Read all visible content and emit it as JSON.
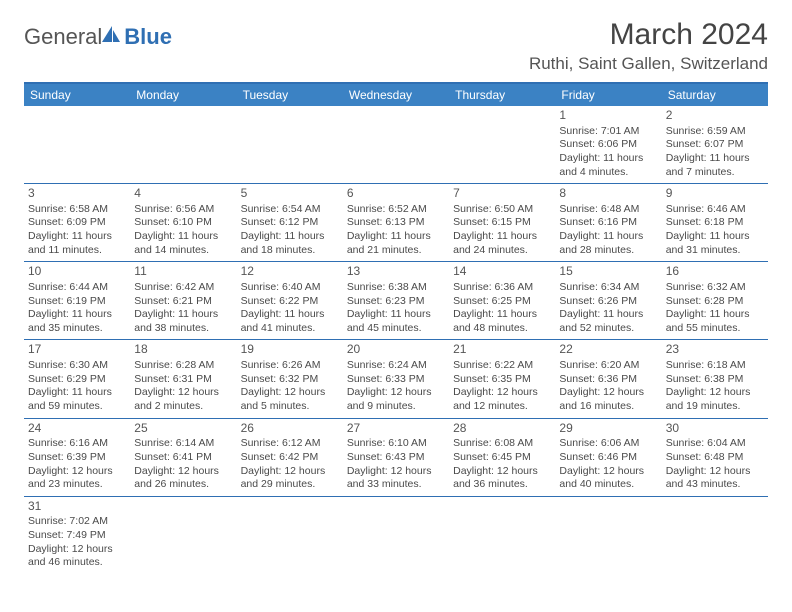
{
  "logo": {
    "part1": "General",
    "part2": "Blue"
  },
  "title": "March 2024",
  "location": "Ruthi, Saint Gallen, Switzerland",
  "colors": {
    "header_bg": "#3b82c4",
    "header_border": "#2f6fb3",
    "row_divider": "#2f6fb3",
    "text": "#4a4a4a",
    "title_text": "#444444",
    "logo_gray": "#555555",
    "logo_blue": "#2f6fb3",
    "background": "#ffffff"
  },
  "typography": {
    "title_fontsize": 30,
    "location_fontsize": 17,
    "dow_fontsize": 12,
    "daynum_fontsize": 12,
    "cell_fontsize": 10.5
  },
  "dow": [
    "Sunday",
    "Monday",
    "Tuesday",
    "Wednesday",
    "Thursday",
    "Friday",
    "Saturday"
  ],
  "weeks": [
    [
      null,
      null,
      null,
      null,
      null,
      {
        "day": "1",
        "sunrise": "Sunrise: 7:01 AM",
        "sunset": "Sunset: 6:06 PM",
        "daylight": "Daylight: 11 hours and 4 minutes."
      },
      {
        "day": "2",
        "sunrise": "Sunrise: 6:59 AM",
        "sunset": "Sunset: 6:07 PM",
        "daylight": "Daylight: 11 hours and 7 minutes."
      }
    ],
    [
      {
        "day": "3",
        "sunrise": "Sunrise: 6:58 AM",
        "sunset": "Sunset: 6:09 PM",
        "daylight": "Daylight: 11 hours and 11 minutes."
      },
      {
        "day": "4",
        "sunrise": "Sunrise: 6:56 AM",
        "sunset": "Sunset: 6:10 PM",
        "daylight": "Daylight: 11 hours and 14 minutes."
      },
      {
        "day": "5",
        "sunrise": "Sunrise: 6:54 AM",
        "sunset": "Sunset: 6:12 PM",
        "daylight": "Daylight: 11 hours and 18 minutes."
      },
      {
        "day": "6",
        "sunrise": "Sunrise: 6:52 AM",
        "sunset": "Sunset: 6:13 PM",
        "daylight": "Daylight: 11 hours and 21 minutes."
      },
      {
        "day": "7",
        "sunrise": "Sunrise: 6:50 AM",
        "sunset": "Sunset: 6:15 PM",
        "daylight": "Daylight: 11 hours and 24 minutes."
      },
      {
        "day": "8",
        "sunrise": "Sunrise: 6:48 AM",
        "sunset": "Sunset: 6:16 PM",
        "daylight": "Daylight: 11 hours and 28 minutes."
      },
      {
        "day": "9",
        "sunrise": "Sunrise: 6:46 AM",
        "sunset": "Sunset: 6:18 PM",
        "daylight": "Daylight: 11 hours and 31 minutes."
      }
    ],
    [
      {
        "day": "10",
        "sunrise": "Sunrise: 6:44 AM",
        "sunset": "Sunset: 6:19 PM",
        "daylight": "Daylight: 11 hours and 35 minutes."
      },
      {
        "day": "11",
        "sunrise": "Sunrise: 6:42 AM",
        "sunset": "Sunset: 6:21 PM",
        "daylight": "Daylight: 11 hours and 38 minutes."
      },
      {
        "day": "12",
        "sunrise": "Sunrise: 6:40 AM",
        "sunset": "Sunset: 6:22 PM",
        "daylight": "Daylight: 11 hours and 41 minutes."
      },
      {
        "day": "13",
        "sunrise": "Sunrise: 6:38 AM",
        "sunset": "Sunset: 6:23 PM",
        "daylight": "Daylight: 11 hours and 45 minutes."
      },
      {
        "day": "14",
        "sunrise": "Sunrise: 6:36 AM",
        "sunset": "Sunset: 6:25 PM",
        "daylight": "Daylight: 11 hours and 48 minutes."
      },
      {
        "day": "15",
        "sunrise": "Sunrise: 6:34 AM",
        "sunset": "Sunset: 6:26 PM",
        "daylight": "Daylight: 11 hours and 52 minutes."
      },
      {
        "day": "16",
        "sunrise": "Sunrise: 6:32 AM",
        "sunset": "Sunset: 6:28 PM",
        "daylight": "Daylight: 11 hours and 55 minutes."
      }
    ],
    [
      {
        "day": "17",
        "sunrise": "Sunrise: 6:30 AM",
        "sunset": "Sunset: 6:29 PM",
        "daylight": "Daylight: 11 hours and 59 minutes."
      },
      {
        "day": "18",
        "sunrise": "Sunrise: 6:28 AM",
        "sunset": "Sunset: 6:31 PM",
        "daylight": "Daylight: 12 hours and 2 minutes."
      },
      {
        "day": "19",
        "sunrise": "Sunrise: 6:26 AM",
        "sunset": "Sunset: 6:32 PM",
        "daylight": "Daylight: 12 hours and 5 minutes."
      },
      {
        "day": "20",
        "sunrise": "Sunrise: 6:24 AM",
        "sunset": "Sunset: 6:33 PM",
        "daylight": "Daylight: 12 hours and 9 minutes."
      },
      {
        "day": "21",
        "sunrise": "Sunrise: 6:22 AM",
        "sunset": "Sunset: 6:35 PM",
        "daylight": "Daylight: 12 hours and 12 minutes."
      },
      {
        "day": "22",
        "sunrise": "Sunrise: 6:20 AM",
        "sunset": "Sunset: 6:36 PM",
        "daylight": "Daylight: 12 hours and 16 minutes."
      },
      {
        "day": "23",
        "sunrise": "Sunrise: 6:18 AM",
        "sunset": "Sunset: 6:38 PM",
        "daylight": "Daylight: 12 hours and 19 minutes."
      }
    ],
    [
      {
        "day": "24",
        "sunrise": "Sunrise: 6:16 AM",
        "sunset": "Sunset: 6:39 PM",
        "daylight": "Daylight: 12 hours and 23 minutes."
      },
      {
        "day": "25",
        "sunrise": "Sunrise: 6:14 AM",
        "sunset": "Sunset: 6:41 PM",
        "daylight": "Daylight: 12 hours and 26 minutes."
      },
      {
        "day": "26",
        "sunrise": "Sunrise: 6:12 AM",
        "sunset": "Sunset: 6:42 PM",
        "daylight": "Daylight: 12 hours and 29 minutes."
      },
      {
        "day": "27",
        "sunrise": "Sunrise: 6:10 AM",
        "sunset": "Sunset: 6:43 PM",
        "daylight": "Daylight: 12 hours and 33 minutes."
      },
      {
        "day": "28",
        "sunrise": "Sunrise: 6:08 AM",
        "sunset": "Sunset: 6:45 PM",
        "daylight": "Daylight: 12 hours and 36 minutes."
      },
      {
        "day": "29",
        "sunrise": "Sunrise: 6:06 AM",
        "sunset": "Sunset: 6:46 PM",
        "daylight": "Daylight: 12 hours and 40 minutes."
      },
      {
        "day": "30",
        "sunrise": "Sunrise: 6:04 AM",
        "sunset": "Sunset: 6:48 PM",
        "daylight": "Daylight: 12 hours and 43 minutes."
      }
    ],
    [
      {
        "day": "31",
        "sunrise": "Sunrise: 7:02 AM",
        "sunset": "Sunset: 7:49 PM",
        "daylight": "Daylight: 12 hours and 46 minutes."
      },
      null,
      null,
      null,
      null,
      null,
      null
    ]
  ]
}
